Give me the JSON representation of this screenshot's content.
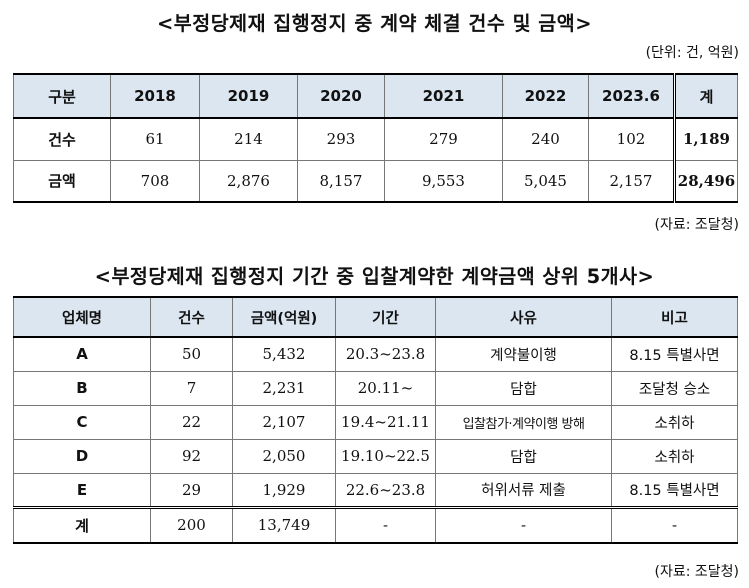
{
  "table1": {
    "title": "<부정당제재 집행정지 중 계약 체결 건수 및 금액>",
    "unit": "(단위: 건, 억원)",
    "headers": [
      "구분",
      "2018",
      "2019",
      "2020",
      "2021",
      "2022",
      "2023.6",
      "계"
    ],
    "rows": [
      {
        "label": "건수",
        "values": [
          "61",
          "214",
          "293",
          "279",
          "240",
          "102"
        ],
        "total": "1,189"
      },
      {
        "label": "금액",
        "values": [
          "708",
          "2,876",
          "8,157",
          "9,553",
          "5,045",
          "2,157"
        ],
        "total": "28,496"
      }
    ],
    "source": "(자료: 조달청)"
  },
  "table2": {
    "title": "<부정당제재 집행정지 기간 중 입찰계약한 계약금액 상위 5개사>",
    "headers": [
      "업체명",
      "건수",
      "금액(억원)",
      "기간",
      "사유",
      "비고"
    ],
    "rows": [
      {
        "name": "A",
        "count": "50",
        "amount": "5,432",
        "period": "20.3~23.8",
        "reason": "계약불이행",
        "note": "8.15 특별사면"
      },
      {
        "name": "B",
        "count": "7",
        "amount": "2,231",
        "period": "20.11~",
        "reason": "담합",
        "note": "조달청 승소"
      },
      {
        "name": "C",
        "count": "22",
        "amount": "2,107",
        "period": "19.4~21.11",
        "reason": "입찰참가·계약이행 방해",
        "note": "소취하"
      },
      {
        "name": "D",
        "count": "92",
        "amount": "2,050",
        "period": "19.10~22.5",
        "reason": "담합",
        "note": "소취하"
      },
      {
        "name": "E",
        "count": "29",
        "amount": "1,929",
        "period": "22.6~23.8",
        "reason": "허위서류 제출",
        "note": "8.15 특별사면"
      }
    ],
    "total": {
      "name": "계",
      "count": "200",
      "amount": "13,749",
      "period": "-",
      "reason": "-",
      "note": "-"
    },
    "source": "(자료: 조달청)"
  }
}
